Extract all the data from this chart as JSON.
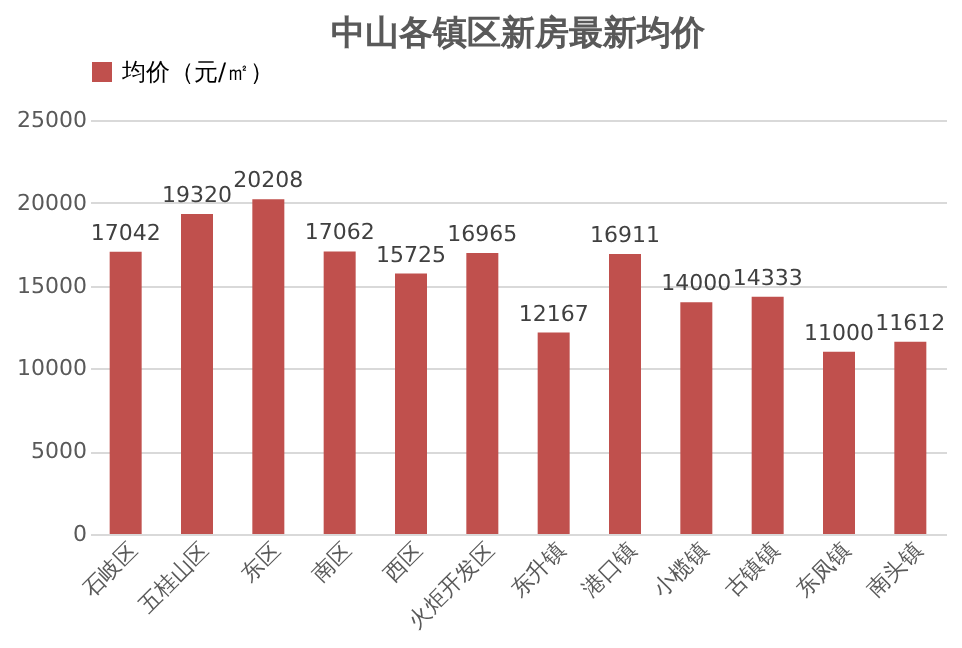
{
  "chart_data": {
    "type": "bar",
    "title": "中山各镇区新房最新均价",
    "categories": [
      "石岐区",
      "五桂山区",
      "东区",
      "南区",
      "西区",
      "火炬开发区",
      "东升镇",
      "港口镇",
      "小榄镇",
      "古镇镇",
      "东凤镇",
      "南头镇"
    ],
    "series": [
      {
        "name": "均价（元/㎡）",
        "color": "#c0504d",
        "values": [
          17042,
          19320,
          20208,
          17062,
          15725,
          16965,
          12167,
          16911,
          14000,
          14333,
          11000,
          11612
        ]
      }
    ],
    "ylim": [
      0,
      25000
    ],
    "yticks": [
      0,
      5000,
      10000,
      15000,
      20000,
      25000
    ],
    "grid": "y",
    "legend": "top",
    "data_labels": true
  }
}
